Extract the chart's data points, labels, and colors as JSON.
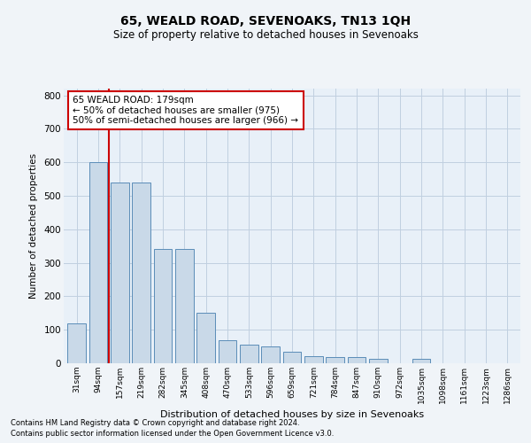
{
  "title1": "65, WEALD ROAD, SEVENOAKS, TN13 1QH",
  "title2": "Size of property relative to detached houses in Sevenoaks",
  "xlabel": "Distribution of detached houses by size in Sevenoaks",
  "ylabel": "Number of detached properties",
  "categories": [
    "31sqm",
    "94sqm",
    "157sqm",
    "219sqm",
    "282sqm",
    "345sqm",
    "408sqm",
    "470sqm",
    "533sqm",
    "596sqm",
    "659sqm",
    "721sqm",
    "784sqm",
    "847sqm",
    "910sqm",
    "972sqm",
    "1035sqm",
    "1098sqm",
    "1161sqm",
    "1223sqm",
    "1286sqm"
  ],
  "values": [
    120,
    600,
    540,
    540,
    340,
    340,
    150,
    70,
    55,
    50,
    35,
    20,
    18,
    18,
    12,
    0,
    12,
    0,
    0,
    0,
    0
  ],
  "bar_color": "#c9d9e8",
  "bar_edge_color": "#5b8db8",
  "annotation_text": "65 WEALD ROAD: 179sqm\n← 50% of detached houses are smaller (975)\n50% of semi-detached houses are larger (966) →",
  "vline_x": 1.5,
  "vline_color": "#cc0000",
  "annotation_box_color": "#ffffff",
  "annotation_box_edge": "#cc0000",
  "ylim": [
    0,
    820
  ],
  "yticks": [
    0,
    100,
    200,
    300,
    400,
    500,
    600,
    700,
    800
  ],
  "grid_color": "#c0cfe0",
  "bg_color": "#e8f0f8",
  "fig_bg_color": "#f0f4f8",
  "footer1": "Contains HM Land Registry data © Crown copyright and database right 2024.",
  "footer2": "Contains public sector information licensed under the Open Government Licence v3.0."
}
